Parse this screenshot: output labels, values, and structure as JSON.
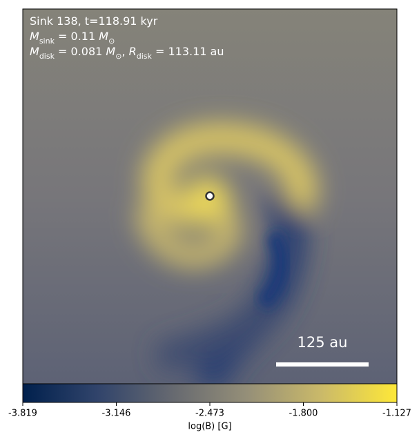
{
  "header": {
    "lines": [
      [
        {
          "text": "Sink 138, t=118.91 kyr",
          "style": "normal"
        }
      ],
      [
        {
          "text": "M",
          "style": "italic"
        },
        {
          "text": "sink",
          "style": "subscript"
        },
        {
          "text": " = 0.11 ",
          "style": "normal"
        },
        {
          "text": "M",
          "style": "italic"
        },
        {
          "text": "⊙",
          "style": "subscript"
        }
      ],
      [
        {
          "text": "M",
          "style": "italic"
        },
        {
          "text": "disk",
          "style": "subscript"
        },
        {
          "text": " = 0.081 ",
          "style": "normal"
        },
        {
          "text": "M",
          "style": "italic"
        },
        {
          "text": "⊙",
          "style": "subscript"
        },
        {
          "text": ", ",
          "style": "normal"
        },
        {
          "text": "R",
          "style": "italic"
        },
        {
          "text": "disk",
          "style": "subscript"
        },
        {
          "text": " = 113.11 au",
          "style": "normal"
        }
      ]
    ]
  },
  "scale_bar": {
    "label": "125 au"
  },
  "colorbar": {
    "label": "log(B) [G]",
    "lim": [
      -3.819,
      -1.127
    ],
    "ticks": [
      -3.819,
      -3.146,
      -2.473,
      {
        "value": -1.8,
        "label": "-1.800"
      },
      -1.127
    ],
    "colors": [
      "#00204d",
      "#31446b",
      "#666970",
      "#958f78",
      "#cbba69",
      "#fee838"
    ]
  }
}
